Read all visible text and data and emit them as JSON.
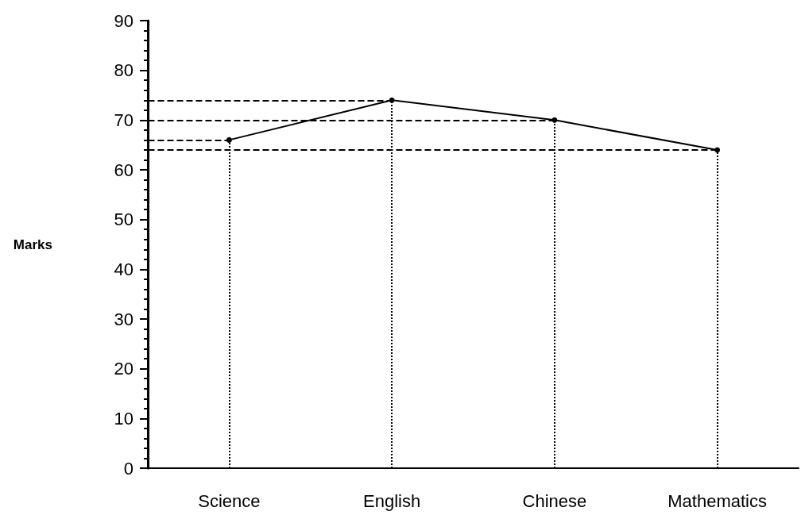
{
  "chart_data": {
    "type": "line",
    "ylabel": "Marks",
    "categories": [
      "Science",
      "English",
      "Chinese",
      "Mathematics"
    ],
    "series": [
      {
        "color": "#000000",
        "values": [
          66,
          74,
          70,
          64
        ]
      }
    ],
    "ylim": [
      0,
      90
    ],
    "yticks": [
      0,
      10,
      20,
      30,
      40,
      50,
      60,
      70,
      80,
      90
    ],
    "grid": false,
    "marker": "circle",
    "line_style": "solid",
    "ref_lines": [
      {
        "axis": "y",
        "value": 66,
        "line_style": "dashed",
        "color": "#000000"
      },
      {
        "axis": "y",
        "value": 74,
        "line_style": "dashed",
        "color": "#000000"
      },
      {
        "axis": "y",
        "value": 70,
        "line_style": "dashed",
        "color": "#000000"
      },
      {
        "axis": "y",
        "value": 64,
        "line_style": "dashed",
        "color": "#000000"
      },
      {
        "axis": "x",
        "value": "Science",
        "line_style": "dotted",
        "color": "#000000"
      },
      {
        "axis": "x",
        "value": "English",
        "line_style": "dotted",
        "color": "#000000"
      },
      {
        "axis": "x",
        "value": "Chinese",
        "line_style": "dotted",
        "color": "#000000"
      },
      {
        "axis": "x",
        "value": "Mathematics",
        "line_style": "dotted",
        "color": "#000000"
      }
    ]
  }
}
